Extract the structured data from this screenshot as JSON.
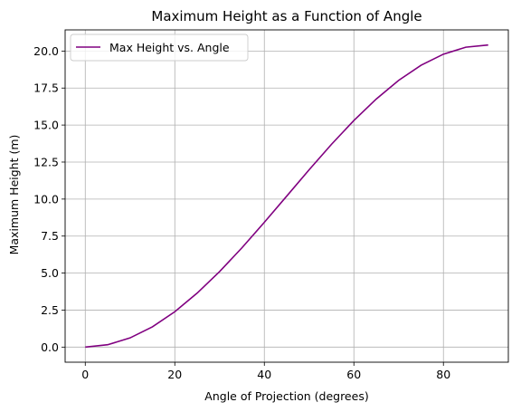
{
  "chart_data": {
    "type": "line",
    "title": "Maximum Height as a Function of Angle",
    "xlabel": "Angle of Projection (degrees)",
    "ylabel": "Maximum Height (m)",
    "xlim": [
      -4.5,
      94.5
    ],
    "ylim": [
      -1.02,
      21.43
    ],
    "xticks": [
      0,
      20,
      40,
      60,
      80
    ],
    "xtick_labels": [
      "0",
      "20",
      "40",
      "60",
      "80"
    ],
    "yticks": [
      0,
      2.5,
      5,
      7.5,
      10,
      12.5,
      15,
      17.5,
      20
    ],
    "ytick_labels": [
      "0.0",
      "2.5",
      "5.0",
      "7.5",
      "10.0",
      "12.5",
      "15.0",
      "17.5",
      "20.0"
    ],
    "grid": true,
    "legend_position": "upper-left",
    "series": [
      {
        "name": "Max Height vs. Angle",
        "color": "#800080",
        "x": [
          0,
          5,
          10,
          15,
          20,
          25,
          30,
          35,
          40,
          45,
          50,
          55,
          60,
          65,
          70,
          75,
          80,
          85,
          90
        ],
        "y": [
          0.0,
          0.16,
          0.62,
          1.37,
          2.39,
          3.65,
          5.1,
          6.71,
          8.43,
          10.2,
          11.98,
          13.7,
          15.31,
          16.76,
          18.02,
          19.04,
          19.79,
          20.26,
          20.41
        ]
      }
    ]
  }
}
